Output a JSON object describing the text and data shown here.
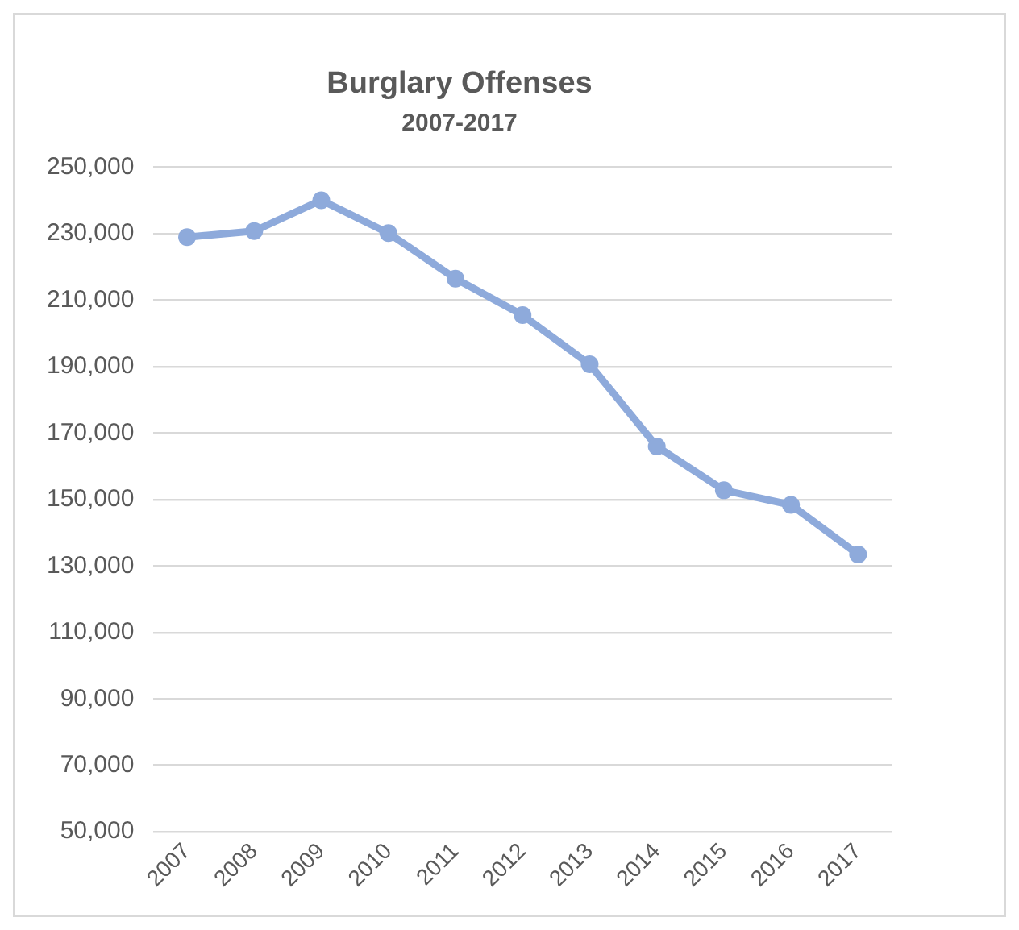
{
  "chart_data": {
    "type": "line",
    "title": "Burglary Offenses",
    "subtitle": "2007-2017",
    "categories": [
      "2007",
      "2008",
      "2009",
      "2010",
      "2011",
      "2012",
      "2013",
      "2014",
      "2015",
      "2016",
      "2017"
    ],
    "series": [
      {
        "color": "#8eaadb",
        "values": [
          229000,
          230800,
          240100,
          230200,
          216500,
          205500,
          190700,
          166000,
          152800,
          148400,
          133500
        ]
      }
    ],
    "ylim": [
      50000,
      250000
    ],
    "yticks": [
      {
        "value": 50000,
        "label": "50,000"
      },
      {
        "value": 70000,
        "label": "70,000"
      },
      {
        "value": 90000,
        "label": "90,000"
      },
      {
        "value": 110000,
        "label": "110,000"
      },
      {
        "value": 130000,
        "label": "130,000"
      },
      {
        "value": 150000,
        "label": "150,000"
      },
      {
        "value": 170000,
        "label": "170,000"
      },
      {
        "value": 190000,
        "label": "190,000"
      },
      {
        "value": 210000,
        "label": "210,000"
      },
      {
        "value": 230000,
        "label": "230,000"
      },
      {
        "value": 250000,
        "label": "250,000"
      }
    ],
    "grid": "y",
    "legend": false,
    "marker": "circle",
    "line_style": "solid"
  }
}
